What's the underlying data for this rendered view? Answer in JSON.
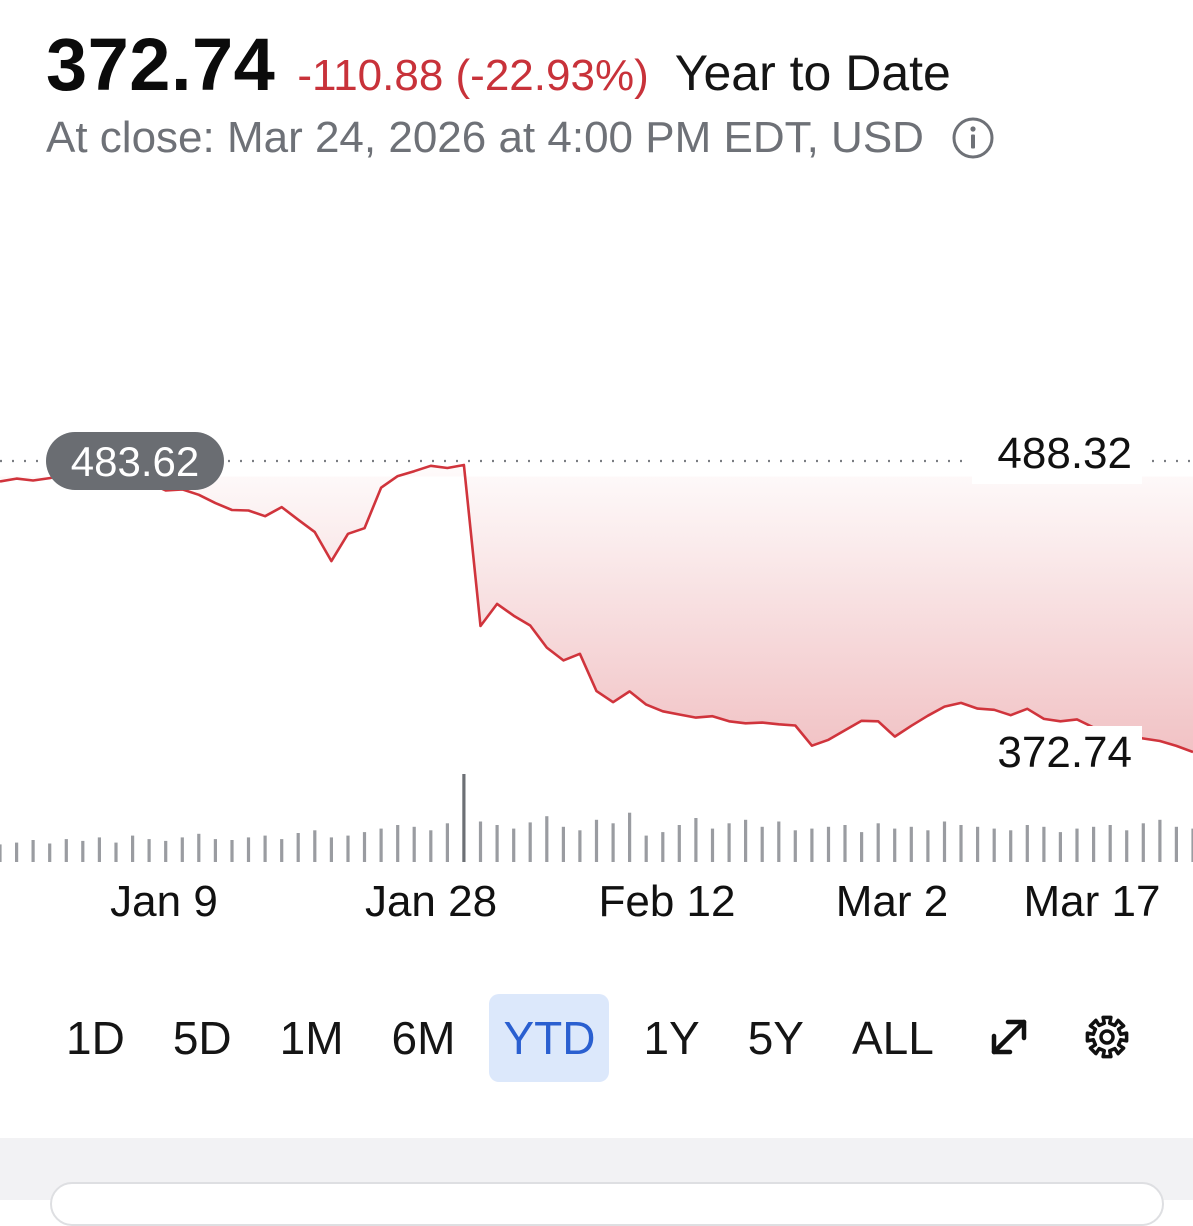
{
  "header": {
    "price": "372.74",
    "change": "-110.88 (-22.93%)",
    "period": "Year to Date",
    "close_info": "At close: Mar 24, 2026 at 4:00 PM EDT, USD"
  },
  "colors": {
    "negative": "#c8323a",
    "line": "#d0343c",
    "fill": "#d0343c",
    "label_bg": "#6a6d72",
    "active_range_bg": "#dce8fb",
    "active_range_text": "#2a5fd0",
    "muted": "#6e7177"
  },
  "icons": {
    "info": "info-circle-icon",
    "expand": "expand-arrows-icon",
    "settings": "gear-icon"
  },
  "ranges": [
    "1D",
    "5D",
    "1M",
    "6M",
    "YTD",
    "1Y",
    "5Y",
    "ALL"
  ],
  "active_range": "YTD",
  "chart_data": {
    "type": "area",
    "title": "",
    "xlabel": "",
    "ylabel": "",
    "x_ticks": [
      "Jan 9",
      "Jan 28",
      "Feb 12",
      "Mar 2",
      "Mar 17"
    ],
    "reference_value": 483.62,
    "reference_label": "483.62",
    "high_label": "488.32",
    "last_label": "372.74",
    "ylim": [
      360,
      500
    ],
    "grid": false,
    "legend": "none",
    "series": [
      {
        "values": [
          481.6,
          482.8,
          482.0,
          483.0,
          484.5,
          484.0,
          486.2,
          485.5,
          484.8,
          481.0,
          478.0,
          478.4,
          476.2,
          472.8,
          470.0,
          469.8,
          467.5,
          471.2,
          466.0,
          461.0,
          449.2,
          460.3,
          462.6,
          479.1,
          483.8,
          485.8,
          488.0,
          487.1,
          488.3,
          422.8,
          431.8,
          427.0,
          423.0,
          414.0,
          408.8,
          411.5,
          396.3,
          391.8,
          396.2,
          390.8,
          388.1,
          386.8,
          385.5,
          386.1,
          384.0,
          383.2,
          383.5,
          382.8,
          382.3,
          374.1,
          376.5,
          380.4,
          384.2,
          384.0,
          377.8,
          382.2,
          386.3,
          390.0,
          391.5,
          389.2,
          388.7,
          386.5,
          389.1,
          385.0,
          384.0,
          384.8,
          381.5,
          380.4,
          378.1,
          377.0,
          376.0,
          374.0,
          371.5
        ]
      }
    ],
    "volume": [
      0.2,
      0.22,
      0.25,
      0.21,
      0.26,
      0.24,
      0.28,
      0.22,
      0.3,
      0.26,
      0.24,
      0.28,
      0.32,
      0.26,
      0.25,
      0.28,
      0.3,
      0.26,
      0.33,
      0.36,
      0.28,
      0.3,
      0.34,
      0.38,
      0.42,
      0.4,
      0.36,
      0.44,
      1.0,
      0.46,
      0.42,
      0.38,
      0.45,
      0.52,
      0.4,
      0.36,
      0.48,
      0.44,
      0.56,
      0.3,
      0.34,
      0.42,
      0.5,
      0.38,
      0.44,
      0.48,
      0.4,
      0.46,
      0.36,
      0.38,
      0.4,
      0.42,
      0.34,
      0.44,
      0.38,
      0.4,
      0.36,
      0.46,
      0.42,
      0.4,
      0.38,
      0.36,
      0.42,
      0.4,
      0.34,
      0.38,
      0.4,
      0.42,
      0.36,
      0.44,
      0.48,
      0.4,
      0.38
    ]
  }
}
